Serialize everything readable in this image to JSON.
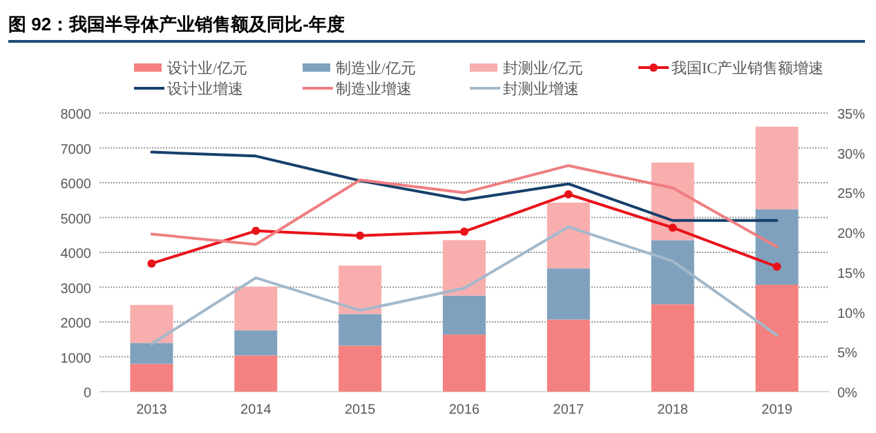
{
  "chart_data": {
    "type": "bar",
    "title": "图 92：我国半导体产业销售额及同比-年度",
    "stacked": true,
    "grid": "y",
    "legend": "top",
    "categories": [
      "2013",
      "2014",
      "2015",
      "2016",
      "2017",
      "2018",
      "2019"
    ],
    "ylim": [
      0,
      8000
    ],
    "yticks": [
      0,
      1000,
      2000,
      3000,
      4000,
      5000,
      6000,
      7000,
      8000
    ],
    "y2lim": [
      0,
      35
    ],
    "y2ticks": [
      {
        "value": 0,
        "label": "0%"
      },
      {
        "value": 5,
        "label": "5%"
      },
      {
        "value": 10,
        "label": "10%"
      },
      {
        "value": 15,
        "label": "15%"
      },
      {
        "value": 20,
        "label": "20%"
      },
      {
        "value": 25,
        "label": "25%"
      },
      {
        "value": 30,
        "label": "30%"
      },
      {
        "value": 35,
        "label": "35%"
      }
    ],
    "series": [
      {
        "name": "设计业/亿元",
        "color": "#f4817f",
        "values": [
          800,
          1040,
          1320,
          1640,
          2070,
          2510,
          3070
        ]
      },
      {
        "name": "制造业/亿元",
        "color": "#7fa1bd",
        "values": [
          600,
          720,
          910,
          1120,
          1470,
          1840,
          2170
        ]
      },
      {
        "name": "封测业/亿元",
        "color": "#f9aeae",
        "values": [
          1090,
          1250,
          1390,
          1590,
          1890,
          2230,
          2370
        ]
      },
      {
        "name": "我国IC产业销售额增速",
        "type": "line",
        "axis": "y2",
        "marker": "circle",
        "color": "#e8121a",
        "values": [
          16.1,
          20.2,
          19.6,
          20.1,
          24.8,
          20.6,
          15.7
        ]
      },
      {
        "name": "设计业增速",
        "type": "line",
        "axis": "y2",
        "color": "#163f6b",
        "values": [
          30.1,
          29.6,
          26.5,
          24.1,
          26.1,
          21.5,
          21.5
        ]
      },
      {
        "name": "制造业增速",
        "type": "line",
        "axis": "y2",
        "color": "#ee7e80",
        "values": [
          19.8,
          18.5,
          26.6,
          25.0,
          28.4,
          25.6,
          18.2
        ]
      },
      {
        "name": "封测业增速",
        "type": "line",
        "axis": "y2",
        "color": "#a3b9cb",
        "values": [
          6.0,
          14.3,
          10.2,
          13.0,
          20.7,
          16.4,
          7.1
        ]
      }
    ]
  }
}
